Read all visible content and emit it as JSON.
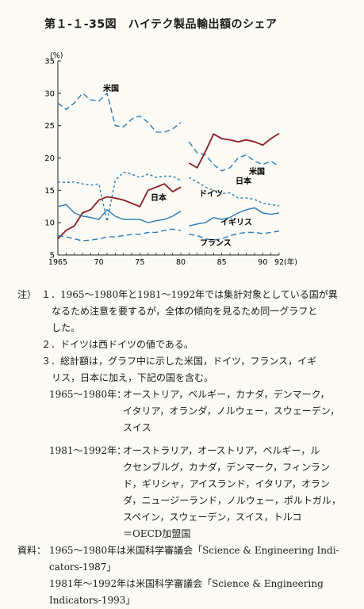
{
  "title": "第１‐１‐35図　ハイテク製品輸出額のシェア",
  "chart_data": {
    "type": "line",
    "unit_label": "(%)",
    "year_label": "(年)",
    "ylim": [
      5,
      35
    ],
    "y_ticks": [
      "5",
      "10",
      "15",
      "20",
      "25",
      "30",
      "35"
    ],
    "x_ticks": [
      {
        "value": 1965,
        "label": "1965"
      },
      {
        "value": 1970,
        "label": "70"
      },
      {
        "value": 1975,
        "label": "75"
      },
      {
        "value": 1980,
        "label": "80"
      },
      {
        "value": 1985,
        "label": "85"
      },
      {
        "value": 1990,
        "label": "90"
      },
      {
        "value": 1992,
        "label": "92"
      }
    ],
    "series": [
      {
        "name": "米国",
        "style": "dashed",
        "color": "#2a7ab5",
        "segments": [
          [
            [
              1965,
              28.5
            ],
            [
              1966,
              27.5
            ],
            [
              1967,
              28.5
            ],
            [
              1968,
              30
            ],
            [
              1969,
              29
            ],
            [
              1970,
              28.8
            ],
            [
              1971,
              30
            ],
            [
              1972,
              25
            ],
            [
              1973,
              24.8
            ],
            [
              1974,
              26
            ],
            [
              1975,
              26.5
            ],
            [
              1976,
              25.5
            ],
            [
              1977,
              24
            ],
            [
              1978,
              24
            ],
            [
              1979,
              24.5
            ],
            [
              1980,
              25.5
            ]
          ],
          [
            [
              1981,
              22.5
            ],
            [
              1982,
              20.8
            ],
            [
              1983,
              20.5
            ],
            [
              1984,
              19
            ],
            [
              1985,
              18
            ],
            [
              1986,
              18.5
            ],
            [
              1987,
              20
            ],
            [
              1988,
              20.5
            ],
            [
              1989,
              19.5
            ],
            [
              1990,
              19
            ],
            [
              1991,
              19.5
            ],
            [
              1992,
              18.7
            ]
          ]
        ]
      },
      {
        "name": "日本",
        "style": "solid",
        "color": "#8a1c25",
        "segments": [
          [
            [
              1965,
              7.5
            ],
            [
              1966,
              8.8
            ],
            [
              1967,
              9.5
            ],
            [
              1968,
              11.5
            ],
            [
              1969,
              12
            ],
            [
              1970,
              13.5
            ],
            [
              1971,
              14
            ],
            [
              1972,
              13.8
            ],
            [
              1973,
              13.5
            ],
            [
              1974,
              13
            ],
            [
              1975,
              12.5
            ],
            [
              1976,
              15
            ],
            [
              1977,
              15.5
            ],
            [
              1978,
              16
            ],
            [
              1979,
              14.8
            ],
            [
              1980,
              15.5
            ]
          ],
          [
            [
              1981,
              19.2
            ],
            [
              1982,
              18.5
            ],
            [
              1983,
              21
            ],
            [
              1984,
              23.7
            ],
            [
              1985,
              23
            ],
            [
              1986,
              22.8
            ],
            [
              1987,
              22.5
            ],
            [
              1988,
              22.8
            ],
            [
              1989,
              22.5
            ],
            [
              1990,
              22
            ],
            [
              1991,
              23
            ],
            [
              1992,
              23.8
            ]
          ]
        ]
      },
      {
        "name": "ドイツ",
        "style": "dotted",
        "color": "#2a7ab5",
        "segments": [
          [
            [
              1965,
              16.3
            ],
            [
              1966,
              16.2
            ],
            [
              1967,
              16.3
            ],
            [
              1968,
              16
            ],
            [
              1969,
              15.8
            ],
            [
              1970,
              16
            ],
            [
              1971,
              10.2
            ],
            [
              1972,
              16.5
            ],
            [
              1973,
              17.8
            ],
            [
              1974,
              17.5
            ],
            [
              1975,
              17
            ],
            [
              1976,
              17.5
            ],
            [
              1977,
              17
            ],
            [
              1978,
              17.2
            ],
            [
              1979,
              17.2
            ],
            [
              1980,
              16.5
            ]
          ],
          [
            [
              1981,
              17
            ],
            [
              1982,
              16.3
            ],
            [
              1983,
              15.5
            ],
            [
              1984,
              15
            ],
            [
              1985,
              14.5
            ],
            [
              1986,
              14.6
            ],
            [
              1987,
              13.8
            ],
            [
              1988,
              13.8
            ],
            [
              1989,
              13.6
            ],
            [
              1990,
              13
            ],
            [
              1991,
              12.8
            ],
            [
              1992,
              12.6
            ]
          ]
        ]
      },
      {
        "name": "イギリス",
        "style": "solid",
        "color": "#2a7ab5",
        "segments": [
          [
            [
              1965,
              12.5
            ],
            [
              1966,
              12.8
            ],
            [
              1967,
              11.5
            ],
            [
              1968,
              11
            ],
            [
              1969,
              10.8
            ],
            [
              1970,
              10.5
            ],
            [
              1971,
              12
            ],
            [
              1972,
              11
            ],
            [
              1973,
              10.5
            ],
            [
              1974,
              10.5
            ],
            [
              1975,
              10.5
            ],
            [
              1976,
              10
            ],
            [
              1977,
              10.3
            ],
            [
              1978,
              10.5
            ],
            [
              1979,
              11
            ],
            [
              1980,
              11.8
            ]
          ],
          [
            [
              1981,
              9.5
            ],
            [
              1982,
              9.8
            ],
            [
              1983,
              10
            ],
            [
              1984,
              10.8
            ],
            [
              1985,
              10.5
            ],
            [
              1986,
              10.8
            ],
            [
              1987,
              11.5
            ],
            [
              1988,
              12
            ],
            [
              1989,
              12.3
            ],
            [
              1990,
              11.5
            ],
            [
              1991,
              11.3
            ],
            [
              1992,
              11.5
            ]
          ]
        ]
      },
      {
        "name": "フランス",
        "style": "dashed",
        "color": "#2a7ab5",
        "segments": [
          [
            [
              1965,
              8
            ],
            [
              1966,
              7.8
            ],
            [
              1967,
              7.5
            ],
            [
              1968,
              7.2
            ],
            [
              1969,
              7.3
            ],
            [
              1970,
              7.5
            ],
            [
              1971,
              7.8
            ],
            [
              1972,
              7.8
            ],
            [
              1973,
              8
            ],
            [
              1974,
              8.2
            ],
            [
              1975,
              8.2
            ],
            [
              1976,
              8.5
            ],
            [
              1977,
              8.5
            ],
            [
              1978,
              8.8
            ],
            [
              1979,
              9
            ],
            [
              1980,
              8.8
            ]
          ],
          [
            [
              1981,
              8.2
            ],
            [
              1982,
              8
            ],
            [
              1983,
              7.5
            ],
            [
              1984,
              7.3
            ],
            [
              1985,
              7.5
            ],
            [
              1986,
              8
            ],
            [
              1987,
              8.3
            ],
            [
              1988,
              8.5
            ],
            [
              1989,
              8.5
            ],
            [
              1990,
              8.3
            ],
            [
              1991,
              8.5
            ],
            [
              1992,
              8.7
            ]
          ]
        ]
      }
    ]
  },
  "notes": {
    "label": "注）",
    "n1_line1": "１．1965～1980年と1981～1992年では集計対象としている国が異",
    "n1_line2": "なるため注意を要するが，全体の傾向を見るため同一グラフと",
    "n1_line3": "した。",
    "n2": "２．ドイツは西ドイツの値である。",
    "n3_line1": "３．総計額は，グラフ中に示した米国，ドイツ，フランス，イギ",
    "n3_line2": "リス，日本に加え，下記の国を含む。",
    "p1_label": "1965～1980年：",
    "p1_line1": "オーストリア，ベルギー，カナダ，デンマーク，",
    "p1_line2": "イタリア，オランダ，ノルウェー，スウェーデン，",
    "p1_line3": "スイス",
    "p2_label": "1981～1992年：",
    "p2_line1": "オーストラリア，オーストリア，ベルギー，ル",
    "p2_line2": "クセンブルグ，カナダ，デンマーク，フィンラン",
    "p2_line3": "ド，ギリシャ，アイスランド，イタリア，オラン",
    "p2_line4": "ダ，ニュージーランド，ノルウェー，ポルトガル，",
    "p2_line5": "スペイン，スウェーデン，スイス，トルコ",
    "p2_line6": "＝OECD加盟国"
  },
  "source": {
    "label": "資料：",
    "line1": "1965～1980年は米国科学審議会「Science & Engineering Indi-",
    "line2": "cators-1987」",
    "line3": "1981年～1992年は米国科学審議会「Science & Engineering",
    "line4": "Indicators-1993」"
  }
}
